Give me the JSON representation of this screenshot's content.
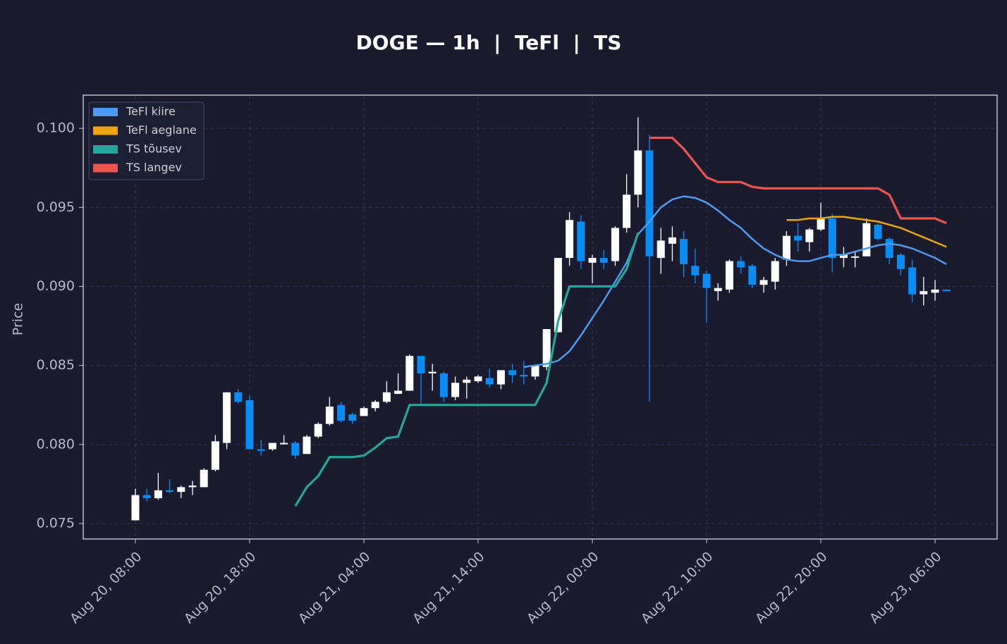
{
  "chart_data": {
    "type": "candlestick",
    "title": "DOGE — 1h  |  TeFl  |  TS",
    "ylabel": "Price",
    "categories": [
      "Aug 20, 08:00",
      null,
      null,
      null,
      null,
      null,
      null,
      null,
      null,
      null,
      "Aug 20, 18:00",
      null,
      null,
      null,
      null,
      null,
      null,
      null,
      null,
      null,
      "Aug 21, 04:00",
      null,
      null,
      null,
      null,
      null,
      null,
      null,
      null,
      null,
      "Aug 21, 14:00",
      null,
      null,
      null,
      null,
      null,
      null,
      null,
      null,
      null,
      "Aug 22, 00:00",
      null,
      null,
      null,
      null,
      null,
      null,
      null,
      null,
      null,
      "Aug 22, 10:00",
      null,
      null,
      null,
      null,
      null,
      null,
      null,
      null,
      null,
      "Aug 22, 20:00",
      null,
      null,
      null,
      null,
      null,
      null,
      null,
      null,
      null,
      "Aug 23, 06:00",
      null
    ],
    "open": [
      0.0752,
      0.0768,
      0.0766,
      0.0771,
      0.077,
      0.0773,
      0.0773,
      0.0784,
      0.0801,
      0.0833,
      0.0828,
      0.0797,
      0.0797,
      0.0801,
      0.0801,
      0.0794,
      0.0805,
      0.0813,
      0.0825,
      0.0819,
      0.0818,
      0.0823,
      0.0827,
      0.0832,
      0.0834,
      0.0856,
      0.0845,
      0.0845,
      0.083,
      0.0839,
      0.084,
      0.0842,
      0.0838,
      0.0847,
      0.0844,
      0.0843,
      0.0849,
      0.0871,
      0.0918,
      0.0941,
      0.0915,
      0.0918,
      0.0916,
      0.0937,
      0.0958,
      0.0986,
      0.0918,
      0.0927,
      0.093,
      0.0913,
      0.0908,
      0.0897,
      0.0898,
      0.0916,
      0.0913,
      0.0901,
      0.0903,
      0.0917,
      0.0932,
      0.0928,
      0.0936,
      0.0943,
      0.0918,
      0.0919,
      0.0919,
      0.0939,
      0.093,
      0.092,
      0.0912,
      0.0895,
      0.0896,
      0.0898
    ],
    "high": [
      0.0772,
      0.0772,
      0.0782,
      0.0778,
      0.0774,
      0.0777,
      0.0785,
      0.0806,
      0.0833,
      0.0835,
      0.0831,
      0.0803,
      0.0801,
      0.0806,
      0.0802,
      0.0806,
      0.0814,
      0.083,
      0.0827,
      0.082,
      0.0824,
      0.0828,
      0.084,
      0.0845,
      0.0857,
      0.0856,
      0.0851,
      0.0846,
      0.0843,
      0.0843,
      0.0844,
      0.0848,
      0.0847,
      0.0851,
      0.0853,
      0.085,
      0.0873,
      0.0918,
      0.0947,
      0.0945,
      0.092,
      0.0923,
      0.0938,
      0.0971,
      0.1007,
      0.0996,
      0.0937,
      0.0938,
      0.0935,
      0.0924,
      0.091,
      0.0902,
      0.0917,
      0.0919,
      0.0914,
      0.0906,
      0.0918,
      0.0935,
      0.094,
      0.0937,
      0.0953,
      0.0946,
      0.0925,
      0.0922,
      0.0943,
      0.094,
      0.0931,
      0.0921,
      0.0917,
      0.0906,
      0.0904,
      0.0898
    ],
    "low": [
      0.0752,
      0.0764,
      0.0765,
      0.0769,
      0.0766,
      0.0768,
      0.0773,
      0.0783,
      0.0797,
      0.0826,
      0.0797,
      0.0793,
      0.0796,
      0.08,
      0.0791,
      0.0794,
      0.0804,
      0.0812,
      0.0814,
      0.0813,
      0.0818,
      0.0821,
      0.0826,
      0.0832,
      0.0834,
      0.0826,
      0.0834,
      0.0827,
      0.0828,
      0.0829,
      0.0839,
      0.0836,
      0.0835,
      0.0839,
      0.0838,
      0.0841,
      0.0847,
      0.0872,
      0.0913,
      0.0911,
      0.0902,
      0.0911,
      0.0913,
      0.0934,
      0.095,
      0.0827,
      0.0908,
      0.0916,
      0.0906,
      0.0902,
      0.0877,
      0.0891,
      0.0896,
      0.0908,
      0.0899,
      0.0896,
      0.0898,
      0.0913,
      0.0922,
      0.0922,
      0.0935,
      0.0909,
      0.0912,
      0.0912,
      0.0919,
      0.0929,
      0.0914,
      0.0907,
      0.089,
      0.0888,
      0.0891,
      0.0897
    ],
    "close": [
      0.0768,
      0.0766,
      0.0771,
      0.077,
      0.0773,
      0.0774,
      0.0784,
      0.0802,
      0.0833,
      0.0827,
      0.0797,
      0.0796,
      0.0801,
      0.0801,
      0.0793,
      0.0805,
      0.0813,
      0.0824,
      0.0815,
      0.0815,
      0.0823,
      0.0827,
      0.0833,
      0.0834,
      0.0856,
      0.0845,
      0.0846,
      0.083,
      0.0839,
      0.0841,
      0.0843,
      0.0838,
      0.0847,
      0.0844,
      0.0843,
      0.085,
      0.0873,
      0.0918,
      0.0942,
      0.0916,
      0.0918,
      0.0915,
      0.0937,
      0.0958,
      0.0986,
      0.0919,
      0.0929,
      0.0931,
      0.0914,
      0.0907,
      0.0899,
      0.0899,
      0.0916,
      0.0912,
      0.0901,
      0.0904,
      0.0916,
      0.0932,
      0.0929,
      0.0936,
      0.0943,
      0.0918,
      0.092,
      0.0919,
      0.094,
      0.093,
      0.0918,
      0.0911,
      0.0895,
      0.0897,
      0.0898,
      0.0897
    ],
    "up_color": "#ffffff",
    "down_color": "#0a8cf5",
    "series": [
      {
        "name": "TeFl kiire",
        "color": "#4e9af0",
        "values": [
          null,
          null,
          null,
          null,
          null,
          null,
          null,
          null,
          null,
          null,
          null,
          null,
          null,
          null,
          null,
          null,
          null,
          null,
          null,
          null,
          null,
          null,
          null,
          null,
          null,
          null,
          null,
          null,
          null,
          null,
          null,
          null,
          null,
          null,
          0.0849,
          0.085,
          0.0851,
          0.0853,
          0.0859,
          0.0869,
          0.088,
          0.0891,
          0.0903,
          0.0915,
          0.0933,
          0.0941,
          0.095,
          0.0955,
          0.0957,
          0.0956,
          0.0953,
          0.0948,
          0.0942,
          0.0937,
          0.093,
          0.0924,
          0.092,
          0.0917,
          0.0916,
          0.0916,
          0.0918,
          0.092,
          0.092,
          0.0922,
          0.0924,
          0.0926,
          0.0927,
          0.0926,
          0.0924,
          0.0921,
          0.0918,
          0.0914
        ]
      },
      {
        "name": "TeFl aeglane",
        "color": "#f0a30a",
        "values": [
          null,
          null,
          null,
          null,
          null,
          null,
          null,
          null,
          null,
          null,
          null,
          null,
          null,
          null,
          null,
          null,
          null,
          null,
          null,
          null,
          null,
          null,
          null,
          null,
          null,
          null,
          null,
          null,
          null,
          null,
          null,
          null,
          null,
          null,
          null,
          null,
          null,
          null,
          null,
          null,
          null,
          null,
          null,
          null,
          null,
          null,
          null,
          null,
          null,
          null,
          null,
          null,
          null,
          null,
          null,
          null,
          null,
          0.0942,
          0.0942,
          0.0943,
          0.0943,
          0.0944,
          0.0944,
          0.0943,
          0.0942,
          0.0941,
          0.0939,
          0.0937,
          0.0934,
          0.0931,
          0.0928,
          0.0925
        ]
      },
      {
        "name": "TS tõusev",
        "color": "#26a69a",
        "values": [
          null,
          null,
          null,
          null,
          null,
          null,
          null,
          null,
          null,
          null,
          null,
          null,
          null,
          null,
          0.0761,
          0.0773,
          0.078,
          0.0792,
          0.0792,
          0.0792,
          0.0793,
          0.0798,
          0.0804,
          0.0805,
          0.0825,
          0.0825,
          0.0825,
          0.0825,
          0.0825,
          0.0825,
          0.0825,
          0.0825,
          0.0825,
          0.0825,
          0.0825,
          0.0825,
          0.0839,
          0.0878,
          0.09,
          0.09,
          0.09,
          0.09,
          0.09,
          0.0911,
          0.0934,
          null,
          null,
          null,
          null,
          null,
          null,
          null,
          null,
          null,
          null,
          null,
          null,
          null,
          null,
          null,
          null,
          null,
          null,
          null,
          null,
          null,
          null,
          null,
          null,
          null,
          null,
          null
        ]
      },
      {
        "name": "TS langev",
        "color": "#ef5350",
        "values": [
          null,
          null,
          null,
          null,
          null,
          null,
          null,
          null,
          null,
          null,
          null,
          null,
          null,
          null,
          null,
          null,
          null,
          null,
          null,
          null,
          null,
          null,
          null,
          null,
          null,
          null,
          null,
          null,
          null,
          null,
          null,
          null,
          null,
          null,
          null,
          null,
          null,
          null,
          null,
          null,
          null,
          null,
          null,
          null,
          null,
          0.0994,
          0.0994,
          0.0994,
          0.0987,
          0.0978,
          0.0969,
          0.0966,
          0.0966,
          0.0966,
          0.0963,
          0.0962,
          0.0962,
          0.0962,
          0.0962,
          0.0962,
          0.0962,
          0.0962,
          0.0962,
          0.0962,
          0.0962,
          0.0962,
          0.0958,
          0.0943,
          0.0943,
          0.0943,
          0.0943,
          0.094
        ]
      }
    ],
    "ylim": [
      0.07402,
      0.1021
    ],
    "yticks": [
      0.075,
      {
        "value": 0.08,
        "label": "0.080"
      },
      0.085,
      {
        "value": 0.09,
        "label": "0.090"
      },
      0.095,
      {
        "value": 0.1,
        "label": "0.100"
      }
    ],
    "grid": true,
    "legend": "upper left"
  }
}
